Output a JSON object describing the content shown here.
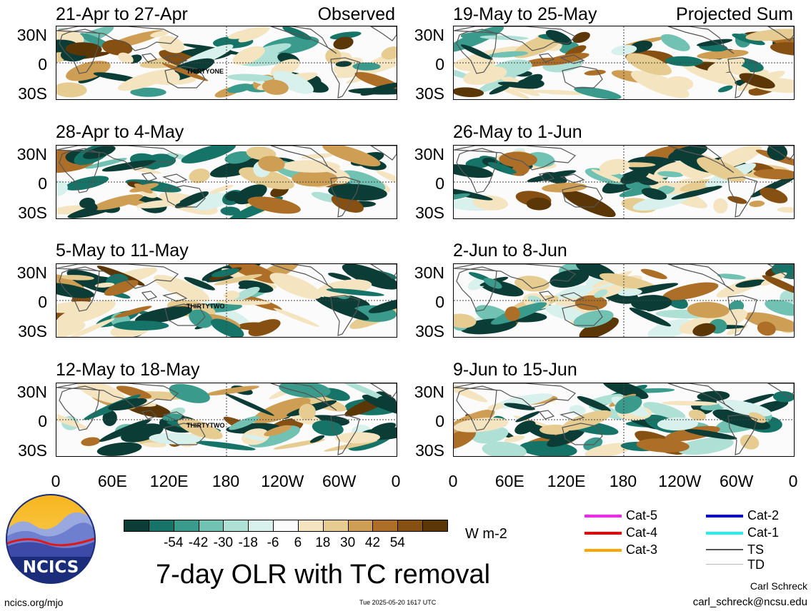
{
  "colors": {
    "neg": [
      "#0b3d36",
      "#157467",
      "#3a9a8b",
      "#72c2b4",
      "#aee0d6",
      "#d9f1ec"
    ],
    "mid": "#fbfbfb",
    "pos": [
      "#f4e4c0",
      "#e6cc90",
      "#cf9e55",
      "#ad6f28",
      "#855012",
      "#5b3606"
    ],
    "land": "#555555"
  },
  "panels": [
    {
      "title": "21-Apr to 27-Apr",
      "label": "Observed",
      "storm": "THIRTYONE"
    },
    {
      "title": "28-Apr to 4-May",
      "label": "",
      "storm": ""
    },
    {
      "title": "5-May to 11-May",
      "label": "",
      "storm": "THIRTYTWO"
    },
    {
      "title": "12-May to 18-May",
      "label": "",
      "storm": "THIRTYTWO"
    },
    {
      "title": "19-May to 25-May",
      "label": "Projected Sum",
      "storm": ""
    },
    {
      "title": "26-May to 1-Jun",
      "label": "",
      "storm": ""
    },
    {
      "title": "2-Jun to 8-Jun",
      "label": "",
      "storm": ""
    },
    {
      "title": "9-Jun to 15-Jun",
      "label": "",
      "storm": ""
    }
  ],
  "lat_labels": [
    "30N",
    "0",
    "30S"
  ],
  "lon_labels": [
    "0",
    "60E",
    "120E",
    "180",
    "120W",
    "60W",
    "0"
  ],
  "colorbar": {
    "ticks": [
      "-54",
      "-42",
      "-30",
      "-18",
      "-6",
      "6",
      "18",
      "30",
      "42",
      "54"
    ],
    "units": "W m-2"
  },
  "legend": [
    {
      "label": "Cat-5",
      "color": "#ff22ff"
    },
    {
      "label": "Cat-4",
      "color": "#ee0000"
    },
    {
      "label": "Cat-3",
      "color": "#ffa500"
    },
    {
      "label": "Cat-2",
      "color": "#0000dd"
    },
    {
      "label": "Cat-1",
      "color": "#22eeee"
    },
    {
      "label": "TS",
      "color": "#555555"
    },
    {
      "label": "TD",
      "color": "#bbbbbb"
    }
  ],
  "logo_text": "NCICS",
  "main_title": "7-day OLR with TC removal",
  "footer": {
    "left": "ncics.org/mjo",
    "center": "Tue 2025-05-20 1617 UTC",
    "author": "Carl Schreck",
    "email": "carl_schreck@ncsu.edu"
  }
}
